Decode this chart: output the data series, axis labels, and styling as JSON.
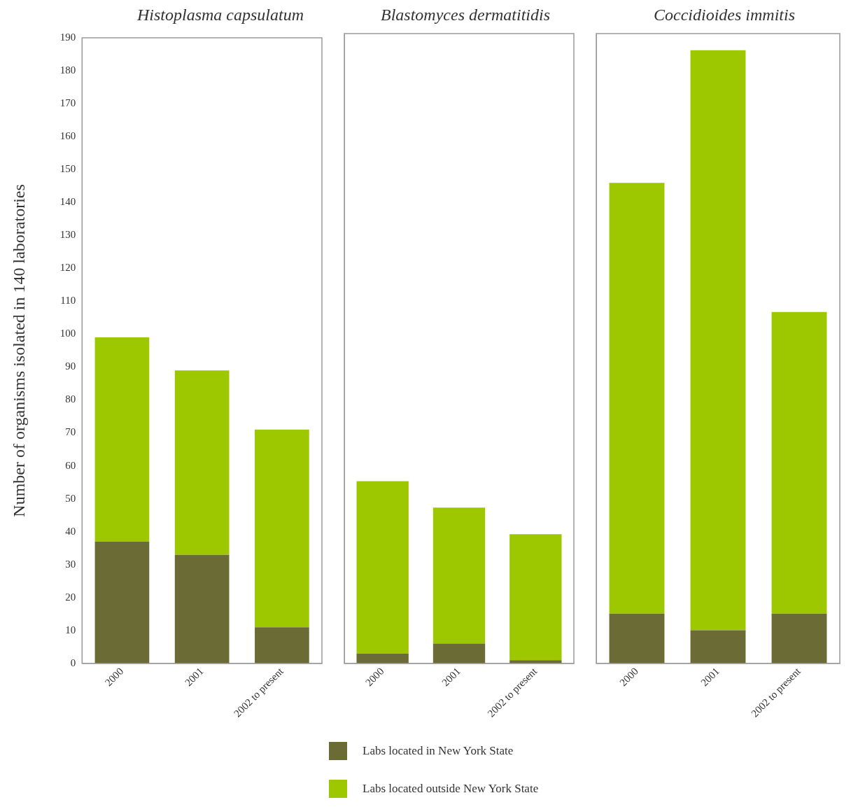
{
  "chart_data": [
    {
      "type": "bar",
      "title": "Histoplasma capsulatum",
      "ylabel": "Number of organisms isolated in 140 laboratories",
      "categories": [
        "2000",
        "2001",
        "2002 to present"
      ],
      "stacked": true,
      "series": [
        {
          "name": "Labs located in New York State",
          "color": "#6b6b35",
          "values": [
            37,
            33,
            11
          ]
        },
        {
          "name": "Labs located outside New York State",
          "color": "#9dc800",
          "values": [
            62,
            56,
            60
          ]
        }
      ],
      "ylim": [
        0,
        190
      ],
      "yticks": [
        0,
        10,
        20,
        30,
        40,
        50,
        60,
        70,
        80,
        90,
        100,
        110,
        120,
        130,
        140,
        150,
        160,
        170,
        180,
        190
      ],
      "legend": "bottom"
    },
    {
      "type": "bar",
      "title": "Blastomyces dermatitidis",
      "categories": [
        "2000",
        "2001",
        "2002 to present"
      ],
      "stacked": true,
      "series": [
        {
          "color": "#6b6b35",
          "values": [
            3,
            6,
            1
          ]
        },
        {
          "color": "#9dc800",
          "values": [
            52,
            41,
            38
          ]
        }
      ],
      "ylim": [
        0,
        190
      ],
      "yticks": [
        0,
        10,
        20,
        30,
        40,
        50,
        60,
        70,
        80,
        90,
        100,
        110,
        120,
        130,
        140,
        150,
        160,
        170,
        180,
        190
      ],
      "tick_labels": "x"
    },
    {
      "type": "bar",
      "title": "Coccidioides immitis",
      "categories": [
        "2000",
        "2001",
        "2002 to present"
      ],
      "stacked": true,
      "series": [
        {
          "color": "#6b6b35",
          "values": [
            15,
            10,
            15
          ]
        },
        {
          "color": "#9dc800",
          "values": [
            130,
            175,
            91
          ]
        }
      ],
      "ylim": [
        0,
        190
      ],
      "yticks": [
        0,
        10,
        20,
        30,
        40,
        50,
        60,
        70,
        80,
        90,
        100,
        110,
        120,
        130,
        140,
        150,
        160,
        170,
        180,
        190
      ],
      "tick_labels": "x"
    }
  ]
}
